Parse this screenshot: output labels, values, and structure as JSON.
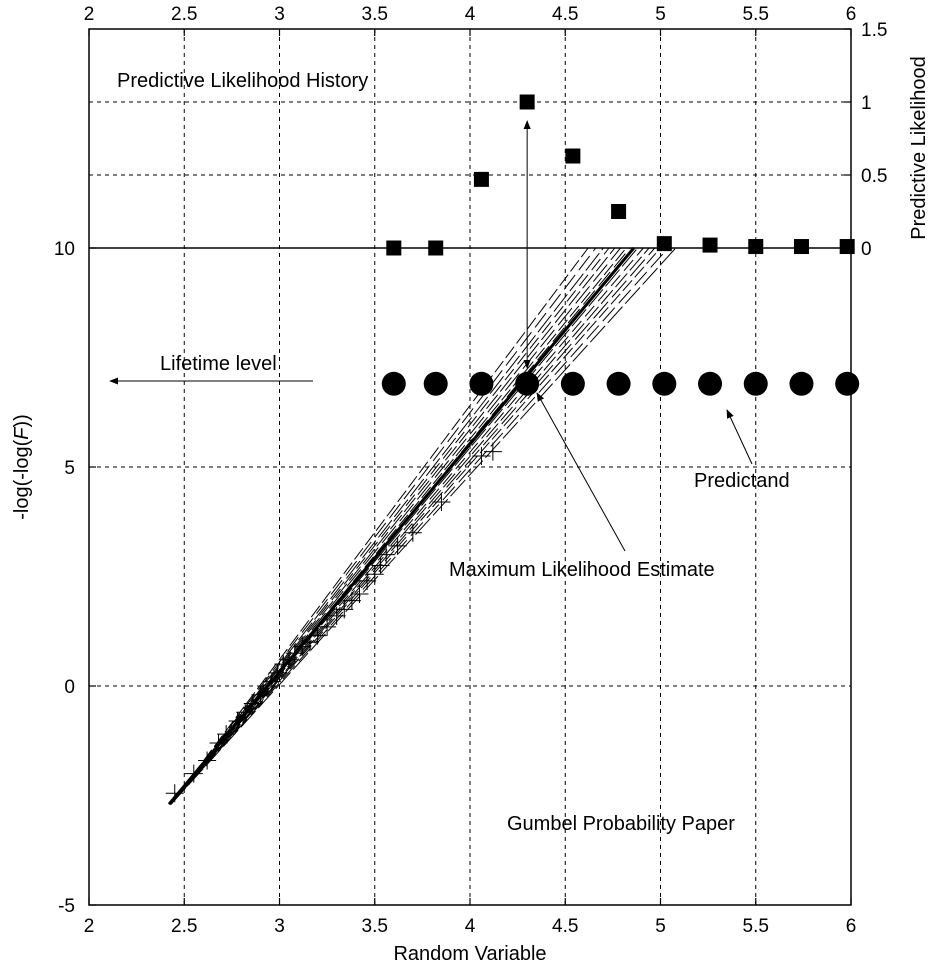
{
  "chart_data": {
    "type": "scatter",
    "title": "",
    "xlabel": "Random Variable",
    "ylabel": "-log(-log(F))",
    "ylabel_parts": {
      "pre": "-log(-log(",
      "italic": "F",
      "post": "))"
    },
    "y2label": "Predictive Likelihood",
    "xlim": [
      2,
      6
    ],
    "ylim": [
      -5,
      15
    ],
    "y2lim": [
      0,
      1.5
    ],
    "grid": true,
    "x_ticks": [
      "2",
      "2.5",
      "3",
      "3.5",
      "4",
      "4.5",
      "5",
      "5.5",
      "6"
    ],
    "x_tick_values": [
      2,
      2.5,
      3,
      3.5,
      4,
      4.5,
      5,
      5.5,
      6
    ],
    "y_ticks": [
      "-5",
      "0",
      "5",
      "10"
    ],
    "y_tick_values": [
      -5,
      0,
      5,
      10
    ],
    "y2_ticks": [
      "0",
      "0.5",
      "1",
      "1.5"
    ],
    "y2_tick_values": [
      0,
      0.5,
      1,
      1.5
    ],
    "y2_baseline": 10,
    "annotations": {
      "history": "Predictive Likelihood History",
      "lifetime": "Lifetime level",
      "predictand": "Predictand",
      "mle": "Maximum Likelihood Estimate",
      "paper": "Gumbel Probability Paper"
    },
    "series": [
      {
        "kind": "square-markers",
        "x": [
          3.6,
          3.82,
          4.06,
          4.3,
          4.54,
          4.78,
          5.02,
          5.26,
          5.5,
          5.74,
          5.98
        ],
        "y2": [
          0.0,
          0.0,
          0.47,
          1.0,
          0.63,
          0.25,
          0.03,
          0.02,
          0.01,
          0.01,
          0.01
        ]
      },
      {
        "kind": "circle-markers",
        "x": [
          3.6,
          3.82,
          4.06,
          4.3,
          4.54,
          4.78,
          5.02,
          5.26,
          5.5,
          5.74,
          5.98
        ],
        "y": [
          6.9,
          6.9,
          6.9,
          6.9,
          6.9,
          6.9,
          6.9,
          6.9,
          6.9,
          6.9,
          6.9
        ]
      },
      {
        "kind": "mle-line",
        "x": [
          2.42,
          4.86
        ],
        "y": [
          -2.7,
          10.0
        ]
      },
      {
        "kind": "plus-markers",
        "x": [
          2.45,
          2.55,
          2.62,
          2.68,
          2.72,
          2.78,
          2.82,
          2.86,
          2.9,
          2.93,
          2.96,
          2.99,
          3.02,
          3.05,
          3.08,
          3.12,
          3.16,
          3.2,
          3.25,
          3.3,
          3.34,
          3.38,
          3.42,
          3.46,
          3.5,
          3.53,
          3.56,
          3.62,
          3.7,
          3.85,
          4.06,
          4.12
        ],
        "y": [
          -2.45,
          -2.0,
          -1.7,
          -1.3,
          -1.1,
          -0.8,
          -0.6,
          -0.4,
          -0.2,
          0.0,
          0.1,
          0.3,
          0.5,
          0.6,
          0.75,
          0.9,
          1.0,
          1.15,
          1.35,
          1.6,
          1.75,
          1.95,
          2.1,
          2.4,
          2.55,
          2.75,
          3.0,
          3.2,
          3.5,
          4.2,
          5.25,
          5.35
        ]
      },
      {
        "kind": "dashed-bundle",
        "origin": [
          2.43,
          -2.7
        ],
        "x_ends": [
          4.62,
          4.66,
          4.7,
          4.73,
          4.76,
          4.79,
          4.82,
          4.84,
          4.88,
          4.91,
          4.94,
          4.97,
          5.0,
          5.04,
          5.08
        ],
        "y_end": 10.0
      }
    ]
  }
}
